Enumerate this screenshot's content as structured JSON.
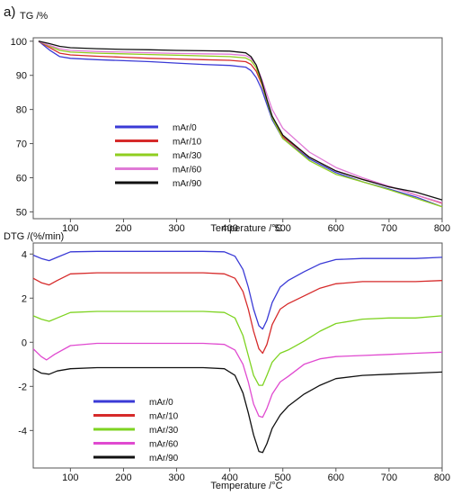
{
  "figure": {
    "panel_label": "a)"
  },
  "chart_data": [
    {
      "type": "line",
      "ylabel": "TG /%",
      "xlabel": "Temperature /°C",
      "xlim": [
        30,
        800
      ],
      "ylim": [
        48,
        101
      ],
      "x_ticks": [
        "100",
        "200",
        "300",
        "400",
        "500",
        "600",
        "700",
        "800"
      ],
      "y_ticks": [
        "50",
        "60",
        "70",
        "80",
        "90",
        "100"
      ],
      "grid": false,
      "legend_position": "center-left",
      "series": [
        {
          "name": "mAr/0",
          "color": "#3a3ad6",
          "points": [
            [
              40,
              100
            ],
            [
              60,
              97.5
            ],
            [
              80,
              95.5
            ],
            [
              100,
              95
            ],
            [
              150,
              94.6
            ],
            [
              200,
              94.3
            ],
            [
              250,
              94
            ],
            [
              300,
              93.6
            ],
            [
              350,
              93.2
            ],
            [
              400,
              92.9
            ],
            [
              430,
              92.4
            ],
            [
              440,
              91.4
            ],
            [
              450,
              89.3
            ],
            [
              460,
              86
            ],
            [
              470,
              81.5
            ],
            [
              480,
              77
            ],
            [
              500,
              71.5
            ],
            [
              550,
              65.5
            ],
            [
              600,
              61.5
            ],
            [
              650,
              58.8
            ],
            [
              700,
              56.7
            ],
            [
              750,
              54.4
            ],
            [
              800,
              51.5
            ]
          ]
        },
        {
          "name": "mAr/10",
          "color": "#d62a2a",
          "points": [
            [
              40,
              100
            ],
            [
              60,
              98.2
            ],
            [
              80,
              96.5
            ],
            [
              100,
              96
            ],
            [
              150,
              95.6
            ],
            [
              200,
              95.3
            ],
            [
              250,
              95
            ],
            [
              300,
              94.8
            ],
            [
              350,
              94.6
            ],
            [
              400,
              94.4
            ],
            [
              430,
              94
            ],
            [
              440,
              93.2
            ],
            [
              450,
              91.2
            ],
            [
              460,
              87.5
            ],
            [
              470,
              82.5
            ],
            [
              480,
              78
            ],
            [
              500,
              72
            ],
            [
              550,
              66
            ],
            [
              600,
              62
            ],
            [
              650,
              59.5
            ],
            [
              700,
              57.5
            ],
            [
              750,
              55
            ],
            [
              800,
              52.5
            ]
          ]
        },
        {
          "name": "mAr/30",
          "color": "#8fce1f",
          "points": [
            [
              40,
              100
            ],
            [
              60,
              98.6
            ],
            [
              80,
              97.3
            ],
            [
              100,
              96.8
            ],
            [
              150,
              96.5
            ],
            [
              200,
              96.3
            ],
            [
              250,
              96.1
            ],
            [
              300,
              95.9
            ],
            [
              350,
              95.7
            ],
            [
              400,
              95.5
            ],
            [
              430,
              95.1
            ],
            [
              440,
              94.3
            ],
            [
              450,
              92.2
            ],
            [
              460,
              88
            ],
            [
              470,
              82.5
            ],
            [
              480,
              77.5
            ],
            [
              500,
              71.5
            ],
            [
              550,
              65
            ],
            [
              600,
              61
            ],
            [
              650,
              58.8
            ],
            [
              700,
              56.5
            ],
            [
              750,
              54
            ],
            [
              800,
              51.5
            ]
          ]
        },
        {
          "name": "mAr/60",
          "color": "#e07ad6",
          "points": [
            [
              40,
              100
            ],
            [
              60,
              98.8
            ],
            [
              80,
              97.8
            ],
            [
              100,
              97.3
            ],
            [
              150,
              97
            ],
            [
              200,
              96.8
            ],
            [
              250,
              96.6
            ],
            [
              300,
              96.4
            ],
            [
              350,
              96.3
            ],
            [
              400,
              96.2
            ],
            [
              430,
              95.8
            ],
            [
              440,
              95
            ],
            [
              450,
              93
            ],
            [
              460,
              89
            ],
            [
              470,
              84.5
            ],
            [
              480,
              80
            ],
            [
              500,
              74.5
            ],
            [
              550,
              67.5
            ],
            [
              600,
              63
            ],
            [
              650,
              60
            ],
            [
              700,
              57.5
            ],
            [
              750,
              55
            ],
            [
              800,
              52.7
            ]
          ]
        },
        {
          "name": "mAr/90",
          "color": "#111111",
          "points": [
            [
              40,
              100
            ],
            [
              60,
              99.3
            ],
            [
              80,
              98.5
            ],
            [
              100,
              98.1
            ],
            [
              150,
              97.8
            ],
            [
              200,
              97.6
            ],
            [
              250,
              97.5
            ],
            [
              300,
              97.3
            ],
            [
              350,
              97.2
            ],
            [
              400,
              97.1
            ],
            [
              430,
              96.6
            ],
            [
              440,
              95.5
            ],
            [
              450,
              93
            ],
            [
              460,
              88.5
            ],
            [
              470,
              83
            ],
            [
              480,
              78
            ],
            [
              500,
              72.5
            ],
            [
              550,
              66
            ],
            [
              600,
              62
            ],
            [
              650,
              59.5
            ],
            [
              700,
              57.3
            ],
            [
              750,
              55.8
            ],
            [
              800,
              53.5
            ]
          ]
        }
      ]
    },
    {
      "type": "line",
      "ylabel": "DTG /(%/min)",
      "xlabel": "Temperature /°C",
      "xlim": [
        30,
        800
      ],
      "ylim": [
        -5.7,
        4.5
      ],
      "x_ticks": [
        "100",
        "200",
        "300",
        "400",
        "500",
        "600",
        "700",
        "800"
      ],
      "y_ticks": [
        "4",
        "2",
        "0",
        "-2",
        "-4"
      ],
      "grid": false,
      "legend_position": "bottom-left",
      "series": [
        {
          "name": "mAr/0",
          "color": "#3a3ad6",
          "points": [
            [
              30,
              3.95
            ],
            [
              45,
              3.8
            ],
            [
              60,
              3.7
            ],
            [
              75,
              3.85
            ],
            [
              100,
              4.1
            ],
            [
              150,
              4.12
            ],
            [
              200,
              4.12
            ],
            [
              250,
              4.12
            ],
            [
              300,
              4.12
            ],
            [
              350,
              4.12
            ],
            [
              390,
              4.1
            ],
            [
              410,
              3.9
            ],
            [
              425,
              3.3
            ],
            [
              435,
              2.5
            ],
            [
              445,
              1.5
            ],
            [
              455,
              0.75
            ],
            [
              462,
              0.6
            ],
            [
              470,
              1.0
            ],
            [
              480,
              1.8
            ],
            [
              495,
              2.5
            ],
            [
              510,
              2.8
            ],
            [
              540,
              3.2
            ],
            [
              570,
              3.55
            ],
            [
              600,
              3.75
            ],
            [
              650,
              3.8
            ],
            [
              700,
              3.8
            ],
            [
              750,
              3.8
            ],
            [
              800,
              3.85
            ]
          ]
        },
        {
          "name": "mAr/10",
          "color": "#d62a2a",
          "points": [
            [
              30,
              2.9
            ],
            [
              45,
              2.7
            ],
            [
              60,
              2.6
            ],
            [
              75,
              2.8
            ],
            [
              100,
              3.1
            ],
            [
              150,
              3.15
            ],
            [
              200,
              3.15
            ],
            [
              250,
              3.15
            ],
            [
              300,
              3.15
            ],
            [
              350,
              3.15
            ],
            [
              390,
              3.1
            ],
            [
              410,
              2.9
            ],
            [
              425,
              2.3
            ],
            [
              435,
              1.5
            ],
            [
              445,
              0.5
            ],
            [
              455,
              -0.3
            ],
            [
              462,
              -0.5
            ],
            [
              470,
              -0.1
            ],
            [
              480,
              0.8
            ],
            [
              495,
              1.5
            ],
            [
              510,
              1.75
            ],
            [
              540,
              2.1
            ],
            [
              570,
              2.45
            ],
            [
              600,
              2.65
            ],
            [
              650,
              2.75
            ],
            [
              700,
              2.75
            ],
            [
              750,
              2.75
            ],
            [
              800,
              2.8
            ]
          ]
        },
        {
          "name": "mAr/30",
          "color": "#7ed321",
          "points": [
            [
              30,
              1.2
            ],
            [
              45,
              1.05
            ],
            [
              60,
              0.95
            ],
            [
              75,
              1.1
            ],
            [
              100,
              1.35
            ],
            [
              150,
              1.4
            ],
            [
              200,
              1.4
            ],
            [
              250,
              1.4
            ],
            [
              300,
              1.4
            ],
            [
              350,
              1.4
            ],
            [
              390,
              1.35
            ],
            [
              410,
              1.1
            ],
            [
              425,
              0.3
            ],
            [
              435,
              -0.6
            ],
            [
              445,
              -1.5
            ],
            [
              455,
              -1.95
            ],
            [
              462,
              -1.95
            ],
            [
              470,
              -1.5
            ],
            [
              480,
              -0.9
            ],
            [
              495,
              -0.5
            ],
            [
              510,
              -0.35
            ],
            [
              540,
              0.05
            ],
            [
              570,
              0.5
            ],
            [
              600,
              0.85
            ],
            [
              650,
              1.05
            ],
            [
              700,
              1.1
            ],
            [
              750,
              1.1
            ],
            [
              800,
              1.2
            ]
          ]
        },
        {
          "name": "mAr/60",
          "color": "#e04ad0",
          "points": [
            [
              30,
              -0.3
            ],
            [
              45,
              -0.65
            ],
            [
              55,
              -0.8
            ],
            [
              70,
              -0.55
            ],
            [
              100,
              -0.15
            ],
            [
              150,
              -0.05
            ],
            [
              200,
              -0.05
            ],
            [
              250,
              -0.05
            ],
            [
              300,
              -0.05
            ],
            [
              350,
              -0.05
            ],
            [
              390,
              -0.1
            ],
            [
              410,
              -0.35
            ],
            [
              425,
              -1.0
            ],
            [
              435,
              -1.8
            ],
            [
              445,
              -2.8
            ],
            [
              455,
              -3.35
            ],
            [
              462,
              -3.4
            ],
            [
              470,
              -3.0
            ],
            [
              480,
              -2.35
            ],
            [
              495,
              -1.8
            ],
            [
              510,
              -1.55
            ],
            [
              540,
              -1.0
            ],
            [
              570,
              -0.75
            ],
            [
              600,
              -0.65
            ],
            [
              650,
              -0.6
            ],
            [
              700,
              -0.55
            ],
            [
              750,
              -0.5
            ],
            [
              800,
              -0.45
            ]
          ]
        },
        {
          "name": "mAr/90",
          "color": "#111111",
          "points": [
            [
              30,
              -1.2
            ],
            [
              45,
              -1.4
            ],
            [
              60,
              -1.45
            ],
            [
              75,
              -1.3
            ],
            [
              100,
              -1.2
            ],
            [
              150,
              -1.15
            ],
            [
              200,
              -1.15
            ],
            [
              250,
              -1.15
            ],
            [
              300,
              -1.15
            ],
            [
              350,
              -1.15
            ],
            [
              390,
              -1.2
            ],
            [
              410,
              -1.5
            ],
            [
              425,
              -2.3
            ],
            [
              435,
              -3.2
            ],
            [
              445,
              -4.2
            ],
            [
              455,
              -4.95
            ],
            [
              462,
              -5.0
            ],
            [
              470,
              -4.6
            ],
            [
              480,
              -3.9
            ],
            [
              495,
              -3.3
            ],
            [
              510,
              -2.9
            ],
            [
              540,
              -2.35
            ],
            [
              570,
              -1.95
            ],
            [
              600,
              -1.65
            ],
            [
              650,
              -1.5
            ],
            [
              700,
              -1.45
            ],
            [
              750,
              -1.4
            ],
            [
              800,
              -1.35
            ]
          ]
        }
      ]
    }
  ]
}
